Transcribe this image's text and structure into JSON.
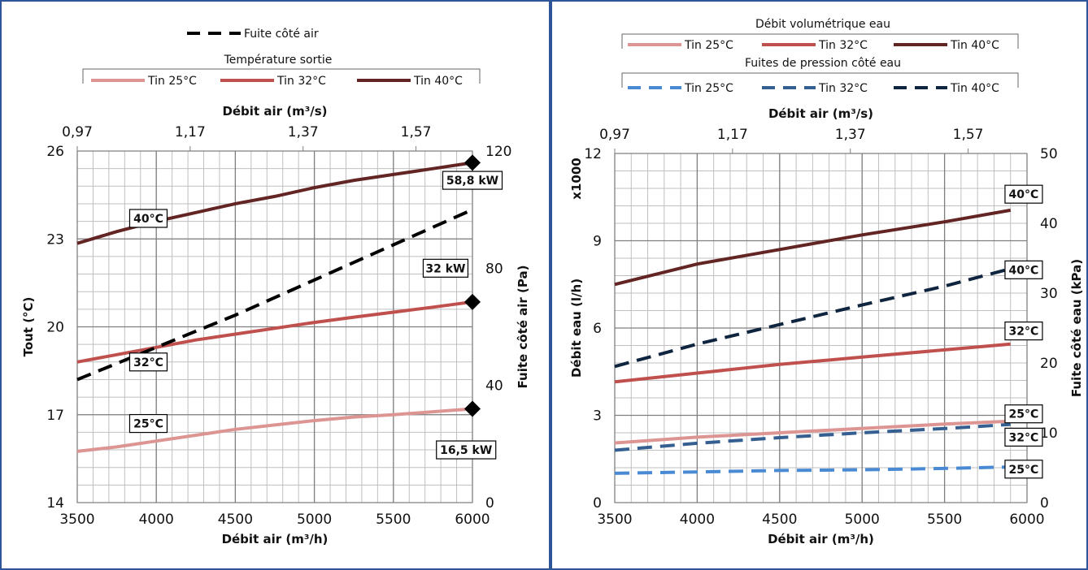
{
  "colors": {
    "tin25": "#dc9592",
    "tin32": "#c0504d",
    "tin40": "#632523",
    "leak_air": "#000000",
    "leak25": "#4a8ad4",
    "leak32": "#365f91",
    "leak40": "#0f243e",
    "border": "#2e5597",
    "grid": "#a6a6a6"
  },
  "chart_data": [
    {
      "type": "line",
      "legend": {
        "leak_entry": "Fuite côté air",
        "temp_title": "Température sortie",
        "entries": [
          "Tin 25°C",
          "Tin 32°C",
          "Tin 40°C"
        ]
      },
      "xlabel": "Débit air (m³/h)",
      "x2label": "Débit air (m³/s)",
      "ylabel": "Tout (°C)",
      "y2label": "Fuite côté air (Pa)",
      "xlim": [
        3500,
        6000
      ],
      "x2lim": [
        0.97,
        1.67
      ],
      "ylim": [
        14,
        26
      ],
      "y2lim": [
        0,
        120
      ],
      "x_ticks": [
        "3500",
        "4000",
        "4500",
        "5000",
        "5500",
        "6000"
      ],
      "x2_ticks": [
        "0,97",
        "1,17",
        "1,37",
        "1,57"
      ],
      "y_ticks": [
        "14",
        "17",
        "20",
        "23",
        "26"
      ],
      "y2_ticks": [
        "0",
        "40",
        "80",
        "120"
      ],
      "grid": true,
      "series": [
        {
          "name": "Tin 25°C",
          "color_key": "tin25",
          "axis": "y",
          "x": [
            3500,
            3750,
            4000,
            4250,
            4500,
            4750,
            5000,
            5250,
            5500,
            5750,
            6000
          ],
          "y": [
            15.75,
            15.9,
            16.1,
            16.3,
            16.5,
            16.65,
            16.8,
            16.92,
            17.0,
            17.1,
            17.2
          ]
        },
        {
          "name": "Tin 32°C",
          "color_key": "tin32",
          "axis": "y",
          "x": [
            3500,
            3750,
            4000,
            4250,
            4500,
            4750,
            5000,
            5250,
            5500,
            5750,
            6000
          ],
          "y": [
            18.8,
            19.05,
            19.3,
            19.55,
            19.75,
            19.95,
            20.15,
            20.33,
            20.5,
            20.67,
            20.85
          ]
        },
        {
          "name": "Tin 40°C",
          "color_key": "tin40",
          "axis": "y",
          "x": [
            3500,
            3750,
            4000,
            4250,
            4500,
            4750,
            5000,
            5250,
            5500,
            5750,
            6000
          ],
          "y": [
            22.85,
            23.25,
            23.6,
            23.9,
            24.2,
            24.45,
            24.75,
            25.0,
            25.2,
            25.4,
            25.6
          ]
        },
        {
          "name": "Fuite côté air",
          "color_key": "leak_air",
          "axis": "y2",
          "dashed": true,
          "x": [
            3500,
            4000,
            4500,
            5000,
            5500,
            6000
          ],
          "y": [
            42,
            53,
            64,
            76,
            88,
            100
          ]
        }
      ],
      "annotations": [
        {
          "text": "40°C",
          "x": 3950,
          "y": 23.7
        },
        {
          "text": "32°C",
          "x": 3950,
          "y": 18.8
        },
        {
          "text": "25°C",
          "x": 3950,
          "y": 16.7
        },
        {
          "text": "58,8 kW",
          "x": 6000,
          "y": 25.0
        },
        {
          "text": "32 kW",
          "x": 5830,
          "y": 22.0
        },
        {
          "text": "16,5 kW",
          "x": 5960,
          "y": 15.8
        }
      ],
      "markers": [
        {
          "x": 6000,
          "y": 25.6
        },
        {
          "x": 6000,
          "y": 20.85
        },
        {
          "x": 6000,
          "y": 17.2
        }
      ]
    },
    {
      "type": "line",
      "legend": {
        "flow_title": "Débit volumétrique eau",
        "leak_title": "Fuites de pression côté eau",
        "entries": [
          "Tin 25°C",
          "Tin 32°C",
          "Tin 40°C"
        ]
      },
      "xlabel": "Débit air (m³/h)",
      "x2label": "Débit air (m³/s)",
      "ylabel": "Débit eau (l/h)",
      "y_multiplier": "x1000",
      "y2label": "Fuite côté eau (kPa)",
      "xlim": [
        3500,
        6000
      ],
      "x2lim": [
        0.97,
        1.67
      ],
      "ylim": [
        0,
        12
      ],
      "y2lim": [
        0,
        50
      ],
      "x_ticks": [
        "3500",
        "4000",
        "4500",
        "5000",
        "5500",
        "6000"
      ],
      "x2_ticks": [
        "0,97",
        "1,17",
        "1,37",
        "1,57"
      ],
      "y_ticks": [
        "0",
        "3",
        "6",
        "9",
        "12"
      ],
      "y2_ticks": [
        "0",
        "10",
        "20",
        "30",
        "40",
        "50"
      ],
      "grid": true,
      "series": [
        {
          "name": "Tin 25°C",
          "color_key": "tin25",
          "axis": "y",
          "x": [
            3500,
            4000,
            4500,
            5000,
            5500,
            5900
          ],
          "y": [
            2.05,
            2.25,
            2.4,
            2.55,
            2.7,
            2.8
          ]
        },
        {
          "name": "Tin 32°C",
          "color_key": "tin32",
          "axis": "y",
          "x": [
            3500,
            4000,
            4500,
            5000,
            5500,
            5900
          ],
          "y": [
            4.15,
            4.45,
            4.75,
            5.0,
            5.25,
            5.45
          ]
        },
        {
          "name": "Tin 40°C",
          "color_key": "tin40",
          "axis": "y",
          "x": [
            3500,
            4000,
            4500,
            5000,
            5500,
            5900
          ],
          "y": [
            7.5,
            8.2,
            8.7,
            9.2,
            9.65,
            10.05
          ]
        },
        {
          "name": "Tin 25°C",
          "color_key": "leak25",
          "axis": "y2",
          "dashed": true,
          "x": [
            3500,
            4000,
            4500,
            5000,
            5500,
            5900
          ],
          "y": [
            4.2,
            4.4,
            4.6,
            4.7,
            4.9,
            5.1
          ]
        },
        {
          "name": "Tin 32°C",
          "color_key": "leak32",
          "axis": "y2",
          "dashed": true,
          "x": [
            3500,
            4000,
            4500,
            5000,
            5500,
            5900
          ],
          "y": [
            7.5,
            8.5,
            9.3,
            10.0,
            10.6,
            11.2
          ]
        },
        {
          "name": "Tin 40°C",
          "color_key": "leak40",
          "axis": "y2",
          "dashed": true,
          "x": [
            3500,
            4000,
            4500,
            5000,
            5500,
            5900
          ],
          "y": [
            19.5,
            22.7,
            25.5,
            28.3,
            31.0,
            33.5
          ]
        }
      ],
      "annotations": [
        {
          "text": "40°C",
          "x": 5980,
          "y": 10.6
        },
        {
          "text": "40°C",
          "x": 5980,
          "y": 8.0
        },
        {
          "text": "32°C",
          "x": 5980,
          "y": 5.9
        },
        {
          "text": "25°C",
          "x": 5980,
          "y": 3.05
        },
        {
          "text": "32°C",
          "x": 5980,
          "y": 2.25
        },
        {
          "text": "25°C",
          "x": 5980,
          "y": 1.15
        }
      ]
    }
  ]
}
